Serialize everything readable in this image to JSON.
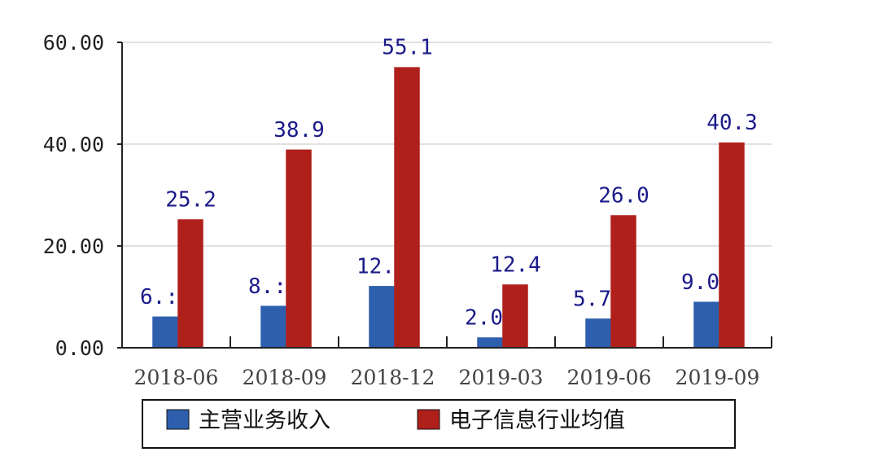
{
  "chart_data": {
    "type": "bar",
    "categories": [
      "2018-06",
      "2018-09",
      "2018-12",
      "2019-03",
      "2019-06",
      "2019-09"
    ],
    "series": [
      {
        "name": "主营业务收入",
        "color": "#2e5faf",
        "values": [
          6.1,
          8.2,
          12.1,
          2.0,
          5.7,
          9.0
        ],
        "labels": [
          "6.:",
          "8.:",
          "12.",
          "2.0",
          "5.7",
          "9.0"
        ]
      },
      {
        "name": "电子信息行业均值",
        "color": "#b0201b",
        "values": [
          25.2,
          38.9,
          55.1,
          12.4,
          26.0,
          40.3
        ],
        "labels": [
          "25.2",
          "38.9",
          "55.1",
          "12.4",
          "26.0",
          "40.3"
        ]
      }
    ],
    "yticks": [
      "0.00",
      "20.00",
      "40.00",
      "60.00"
    ],
    "ylim": [
      0,
      60
    ],
    "grid": true,
    "legend_position": "bottom"
  }
}
